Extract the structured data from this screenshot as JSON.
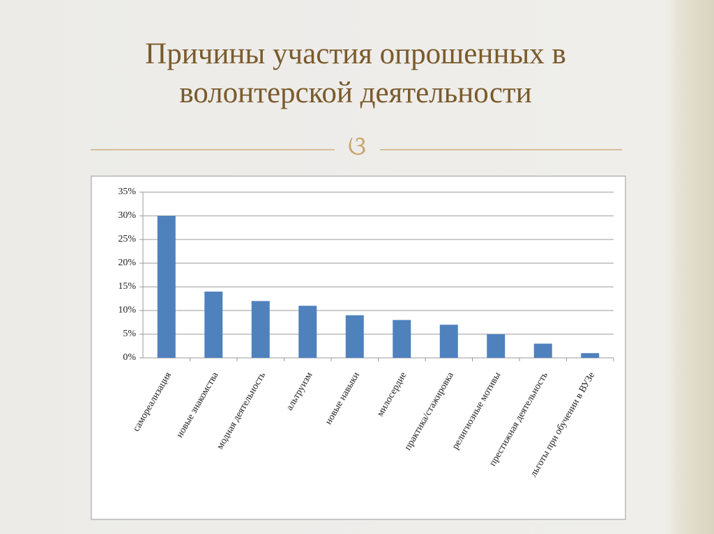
{
  "chart_data": {
    "type": "bar",
    "title": "Причины участия опрошенных в волонтерской деятельности",
    "categories": [
      "самореализация",
      "новые знакомства",
      "модная деятельность",
      "альтруизм",
      "новые навыки",
      "милосердие",
      "практика/стажировка",
      "религиозные мотивы",
      "престижная деятельность",
      "льготы при обучении в ВУЗе"
    ],
    "values": [
      30,
      14,
      12,
      11,
      9,
      8,
      7,
      5,
      3,
      1
    ],
    "color": "#4f81bd",
    "ylim": [
      0,
      35
    ],
    "yticks": [
      {
        "value": 0,
        "label": "0%"
      },
      {
        "value": 5,
        "label": "5%"
      },
      {
        "value": 10,
        "label": "10%"
      },
      {
        "value": 15,
        "label": "15%"
      },
      {
        "value": 20,
        "label": "20%"
      },
      {
        "value": 25,
        "label": "25%"
      },
      {
        "value": 30,
        "label": "30%"
      },
      {
        "value": 35,
        "label": "35%"
      }
    ],
    "grid": true
  }
}
